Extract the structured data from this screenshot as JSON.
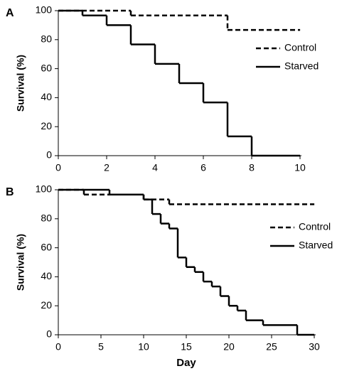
{
  "chart_data": [
    {
      "type": "step",
      "panel_label": "A",
      "ylabel": "Survival (%)",
      "xlim": [
        0,
        10
      ],
      "xticks": [
        0,
        2,
        4,
        6,
        8,
        10
      ],
      "ylim": [
        0,
        100
      ],
      "yticks": [
        0,
        20,
        40,
        60,
        80,
        100
      ],
      "legend": "upper-right",
      "series": [
        {
          "name": "Control",
          "color": "#000000",
          "dashed": true,
          "x": [
            0,
            3,
            7,
            10
          ],
          "values": [
            100,
            96.7,
            86.7,
            86.7
          ]
        },
        {
          "name": "Starved",
          "color": "#000000",
          "dashed": false,
          "x": [
            0,
            1,
            2,
            3,
            4,
            5,
            6,
            7,
            8,
            10
          ],
          "values": [
            100,
            96.7,
            90,
            76.7,
            63.3,
            50,
            36.7,
            13.3,
            0,
            0
          ]
        }
      ]
    },
    {
      "type": "step",
      "panel_label": "B",
      "ylabel": "Survival (%)",
      "xlabel": "Day",
      "xlim": [
        0,
        30
      ],
      "xticks": [
        0,
        5,
        10,
        15,
        20,
        25,
        30
      ],
      "ylim": [
        0,
        100
      ],
      "yticks": [
        0,
        20,
        40,
        60,
        80,
        100
      ],
      "legend": "upper-right",
      "series": [
        {
          "name": "Control",
          "color": "#000000",
          "dashed": true,
          "x": [
            0,
            3,
            10,
            13,
            30
          ],
          "values": [
            100,
            96.7,
            93.3,
            90,
            90
          ]
        },
        {
          "name": "Starved",
          "color": "#000000",
          "dashed": false,
          "x": [
            0,
            6,
            10,
            11,
            12,
            13,
            14,
            15,
            16,
            17,
            18,
            19,
            20,
            21,
            22,
            24,
            28,
            30
          ],
          "values": [
            100,
            96.7,
            93.3,
            83.3,
            76.7,
            73.3,
            53.3,
            46.7,
            43.3,
            36.7,
            33.3,
            26.7,
            20,
            16.7,
            10,
            6.7,
            0,
            0
          ]
        }
      ]
    }
  ]
}
